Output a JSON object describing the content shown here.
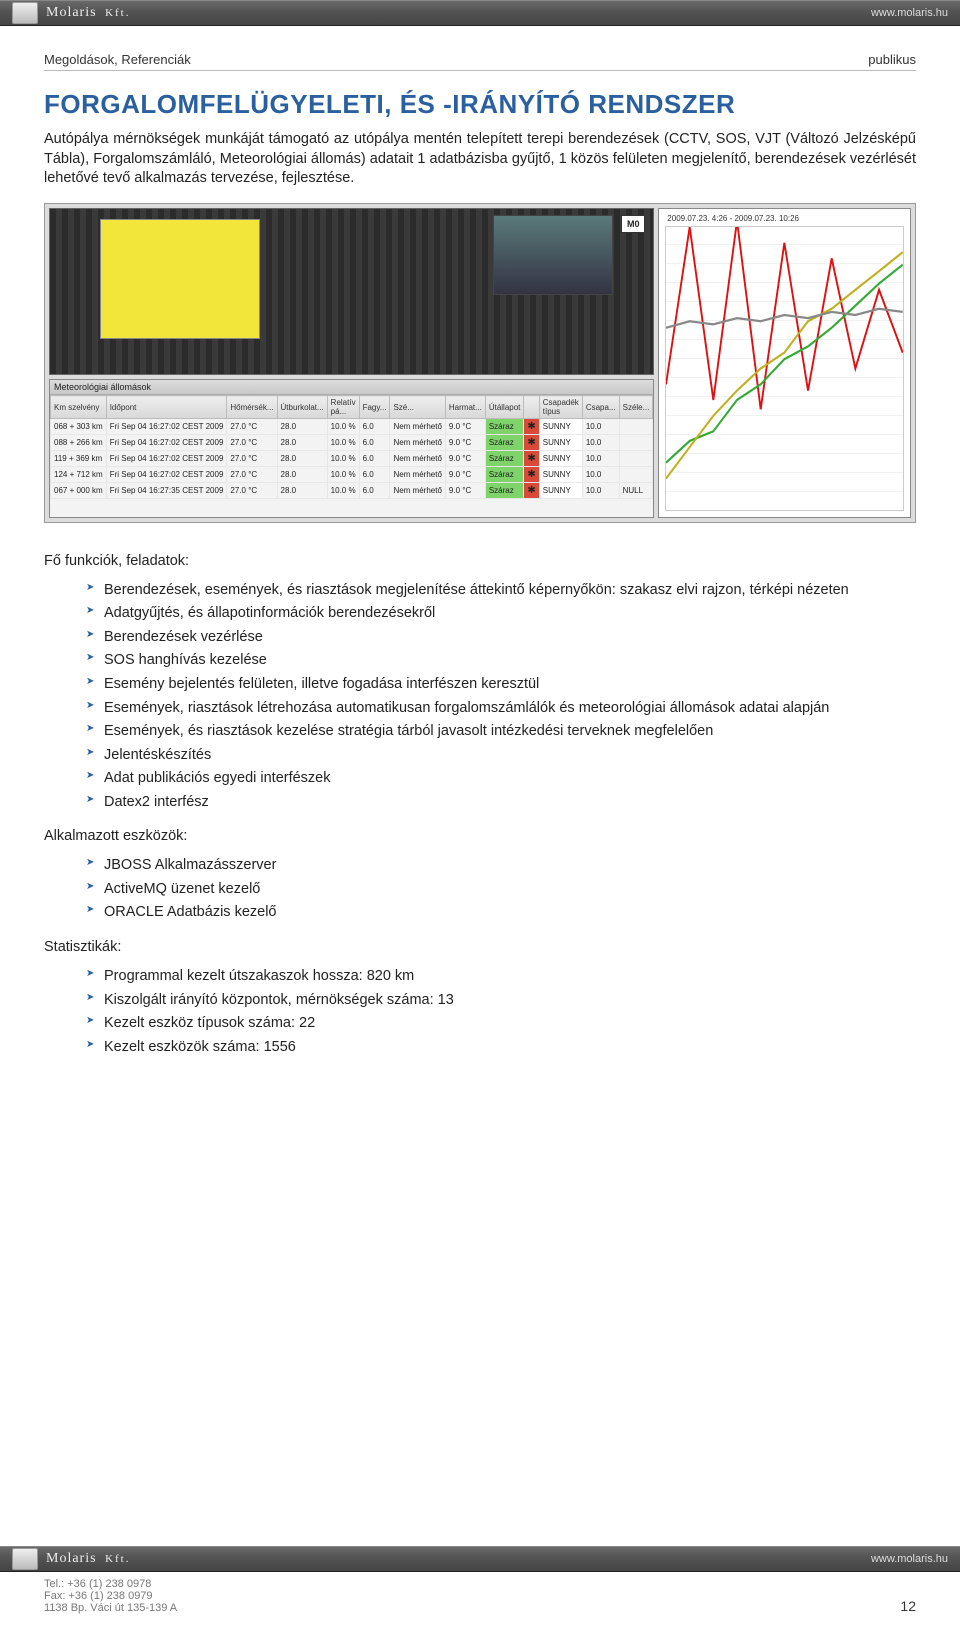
{
  "brand": {
    "name": "Molaris",
    "suffix": "Kft.",
    "site": "www.molaris.hu"
  },
  "header": {
    "left": "Megoldások, Referenciák",
    "right": "publikus"
  },
  "title": "FORGALOMFELÜGYELETI, ÉS -IRÁNYÍTÓ RENDSZER",
  "intro": "Autópálya mérnökségek munkáját támogató az utópálya mentén telepített terepi berendezések (CCTV, SOS, VJT (Változó Jelzésképű Tábla), Forgalomszámláló, Meteorológiai állomás) adatait 1 adatbázisba gyűjtő, 1 közös felületen megjelenítő, berendezések vezérlését lehetővé tevő alkalmazás tervezése, fejlesztése.",
  "m0_label": "M0",
  "meteo": {
    "title": "Meteorológiai állomások",
    "headers": [
      "Km szelvény",
      "Időpont",
      "Hőmérsék...",
      "Útburkolat...",
      "Relatív pá...",
      "Fagy...",
      "Szé...",
      "Harmat...",
      "Útállapot",
      "",
      "Csapadék típus",
      "Csapa...",
      "Széle..."
    ],
    "rows": [
      {
        "km": "068 + 303 km",
        "time": "Fri Sep 04 16:27:02 CEST 2009",
        "t": "27.0 °C",
        "road": "28.0",
        "rh": "10.0 %",
        "fagy": "6.0",
        "sze": "Nem mérhető",
        "harmat": "9.0 °C",
        "state": "Száraz",
        "type": "SUNNY",
        "csapa": "10.0",
        "szele": ""
      },
      {
        "km": "088 + 266 km",
        "time": "Fri Sep 04 16:27:02 CEST 2009",
        "t": "27.0 °C",
        "road": "28.0",
        "rh": "10.0 %",
        "fagy": "6.0",
        "sze": "Nem mérhető",
        "harmat": "9.0 °C",
        "state": "Száraz",
        "type": "SUNNY",
        "csapa": "10.0",
        "szele": ""
      },
      {
        "km": "119 + 369 km",
        "time": "Fri Sep 04 16:27:02 CEST 2009",
        "t": "27.0 °C",
        "road": "28.0",
        "rh": "10.0 %",
        "fagy": "6.0",
        "sze": "Nem mérhető",
        "harmat": "9.0 °C",
        "state": "Száraz",
        "type": "SUNNY",
        "csapa": "10.0",
        "szele": ""
      },
      {
        "km": "124 + 712 km",
        "time": "Fri Sep 04 16:27:02 CEST 2009",
        "t": "27.0 °C",
        "road": "28.0",
        "rh": "10.0 %",
        "fagy": "6.0",
        "sze": "Nem mérhető",
        "harmat": "9.0 °C",
        "state": "Száraz",
        "type": "SUNNY",
        "csapa": "10.0",
        "szele": ""
      },
      {
        "km": "067 + 000 km",
        "time": "Fri Sep 04 16:27:35 CEST 2009",
        "t": "27.0 °C",
        "road": "28.0",
        "rh": "10.0 %",
        "fagy": "6.0",
        "sze": "Nem mérhető",
        "harmat": "9.0 °C",
        "state": "Száraz",
        "type": "SUNNY",
        "csapa": "10.0",
        "szele": "NULL"
      }
    ]
  },
  "chart": {
    "title": "2009.07.23. 4:26 - 2009.07.23. 10:26",
    "ylim": [
      -30,
      60
    ],
    "series": [
      {
        "color": "#d11",
        "points": [
          [
            0,
            10
          ],
          [
            1,
            60
          ],
          [
            2,
            5
          ],
          [
            3,
            62
          ],
          [
            4,
            2
          ],
          [
            5,
            55
          ],
          [
            6,
            8
          ],
          [
            7,
            50
          ],
          [
            8,
            15
          ],
          [
            9,
            40
          ],
          [
            10,
            20
          ]
        ]
      },
      {
        "color": "#3a3",
        "points": [
          [
            0,
            -15
          ],
          [
            1,
            -8
          ],
          [
            2,
            -5
          ],
          [
            3,
            5
          ],
          [
            4,
            10
          ],
          [
            5,
            18
          ],
          [
            6,
            22
          ],
          [
            7,
            28
          ],
          [
            8,
            35
          ],
          [
            9,
            42
          ],
          [
            10,
            48
          ]
        ]
      },
      {
        "color": "#c0b020",
        "points": [
          [
            0,
            -20
          ],
          [
            1,
            -10
          ],
          [
            2,
            0
          ],
          [
            3,
            8
          ],
          [
            4,
            15
          ],
          [
            5,
            20
          ],
          [
            6,
            30
          ],
          [
            7,
            34
          ],
          [
            8,
            40
          ],
          [
            9,
            46
          ],
          [
            10,
            52
          ]
        ]
      },
      {
        "color": "#888",
        "points": [
          [
            0,
            28
          ],
          [
            1,
            30
          ],
          [
            2,
            29
          ],
          [
            3,
            31
          ],
          [
            4,
            30
          ],
          [
            5,
            32
          ],
          [
            6,
            31
          ],
          [
            7,
            33
          ],
          [
            8,
            32
          ],
          [
            9,
            34
          ],
          [
            10,
            33
          ]
        ]
      }
    ]
  },
  "sections": {
    "funcs_title": "Fő funkciók, feladatok:",
    "funcs": [
      "Berendezések, események, és riasztások megjelenítése áttekintő képernyőkön: szakasz elvi rajzon, térképi nézeten",
      "Adatgyűjtés, és állapotinformációk berendezésekről",
      "Berendezések vezérlése",
      "SOS hanghívás kezelése",
      "Esemény bejelentés felületen, illetve fogadása interfészen keresztül",
      "Események, riasztások létrehozása automatikusan forgalomszámlálók és meteorológiai állomások adatai alapján",
      "Események, és riasztások kezelése stratégia tárból javasolt intézkedési terveknek megfelelően",
      "Jelentéskészítés",
      "Adat publikációs egyedi interfészek",
      "Datex2 interfész"
    ],
    "tools_title": "Alkalmazott eszközök:",
    "tools": [
      "JBOSS Alkalmazásszerver",
      "ActiveMQ üzenet kezelő",
      "ORACLE Adatbázis kezelő"
    ],
    "stats_title": "Statisztikák:",
    "stats": [
      "Programmal kezelt útszakaszok hossza: 820 km",
      "Kiszolgált irányító központok, mérnökségek száma: 13",
      "Kezelt eszköz típusok száma: 22",
      "Kezelt eszközök száma: 1556"
    ]
  },
  "footer": {
    "tel": "Tel.: +36 (1) 238 0978",
    "fax": "Fax: +36 (1) 238 0979",
    "addr": "1138 Bp. Váci út 135-139 A",
    "page": "12"
  }
}
